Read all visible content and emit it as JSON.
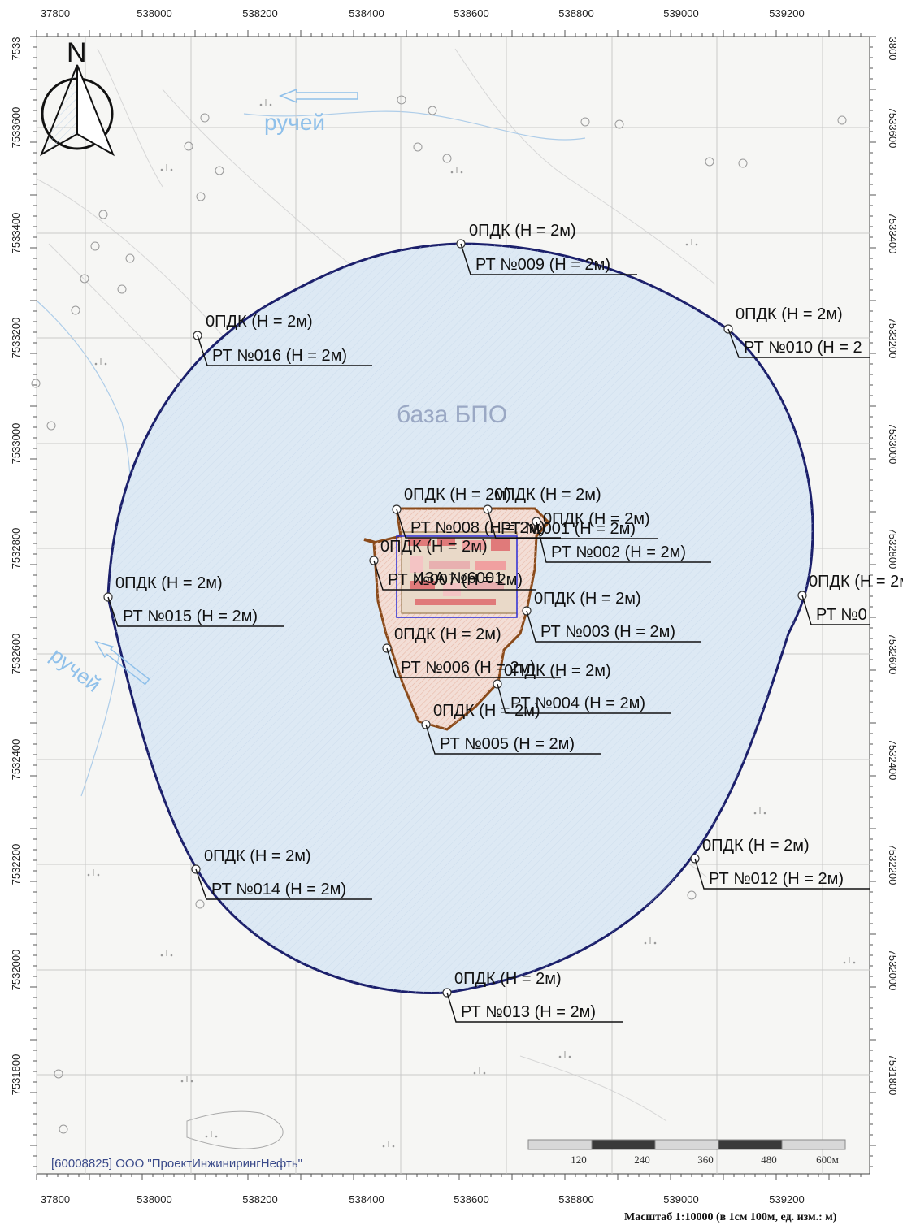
{
  "x_ticks": [
    "37800",
    "538000",
    "538200",
    "538400",
    "538600",
    "538800",
    "539000",
    "539200"
  ],
  "y_ticks": [
    "7533",
    "7533600",
    "7533400",
    "7533200",
    "7533000",
    "7532800",
    "7532600",
    "7532400",
    "7532200",
    "7532000",
    "7531800"
  ],
  "y_ticks_right": [
    "3800",
    "7533600",
    "7533400",
    "7533200",
    "7533000",
    "7532800",
    "7532600",
    "7532400",
    "7532200",
    "7532000",
    "7531800"
  ],
  "north_label": "N",
  "features": {
    "stream_1": "ручей",
    "stream_2": "ручей",
    "base_name": "база БПО",
    "source_name": "ИЗА №6001"
  },
  "pdk_label": "0ПДК (H = 2м)",
  "points": [
    {
      "id": "016",
      "rt": "РТ №016 (H = 2м)"
    },
    {
      "id": "009",
      "rt": "РТ №009 (H = 2м)"
    },
    {
      "id": "010",
      "rt": "РТ №010 (H = 2"
    },
    {
      "id": "015",
      "rt": "РТ №015 (H = 2м)"
    },
    {
      "id": "011",
      "rt": "РТ №0"
    },
    {
      "id": "014",
      "rt": "РТ №014 (H = 2м)"
    },
    {
      "id": "012",
      "rt": "РТ №012 (H = 2м)"
    },
    {
      "id": "013",
      "rt": "РТ №013 (H = 2м)"
    },
    {
      "id": "001",
      "rt": "РТ №001 (H = 2м)"
    },
    {
      "id": "002",
      "rt": "РТ №002 (H = 2м)"
    },
    {
      "id": "003",
      "rt": "РТ №003 (H = 2м)"
    },
    {
      "id": "004",
      "rt": "РТ №004 (H = 2м)"
    },
    {
      "id": "005",
      "rt": "РТ №005 (H = 2м)"
    },
    {
      "id": "006",
      "rt": "РТ №006 (H = 2м)"
    },
    {
      "id": "007",
      "rt": "РТ №007 (H = 2м)"
    },
    {
      "id": "008",
      "rt": "РТ №008 (H = 2м)"
    }
  ],
  "scale_bar": {
    "labels": [
      "120",
      "240",
      "360",
      "480",
      "600м"
    ]
  },
  "watermark": "[60008825] ООО \"ПроектИнжинирингНефть\"",
  "footer": "Масштаб 1:10000 (в 1см 100м, ед. изм.: м)",
  "colors": {
    "zone_fill": "#dde9f4",
    "zone_stroke": "#1b1f6b",
    "site_stroke": "#8a4a1a",
    "stream": "#7fb3e0"
  }
}
